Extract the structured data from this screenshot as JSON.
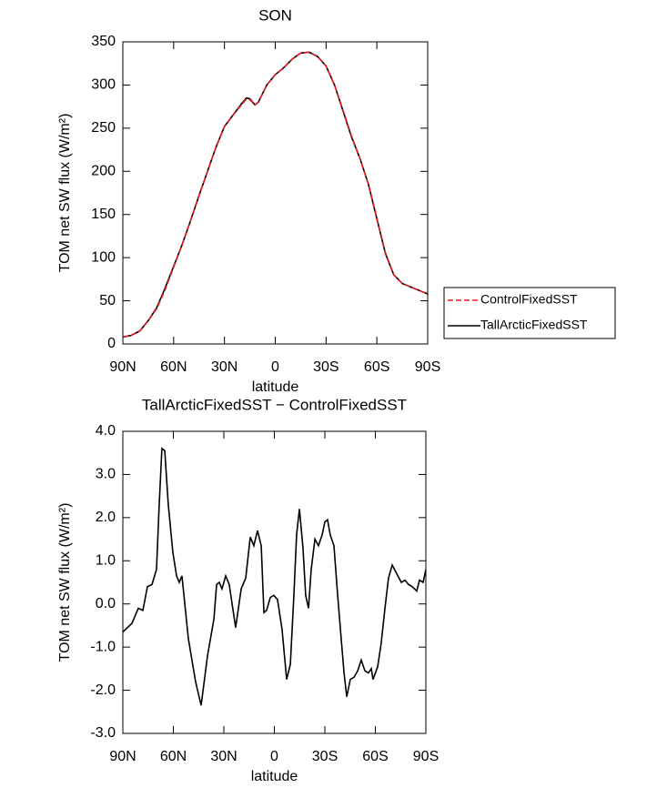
{
  "chart_data": [
    {
      "type": "line",
      "title": "SON",
      "x_label": "latitude",
      "y_label": "TOM net SW flux (W/m²)",
      "x": [
        90,
        85,
        80,
        75,
        70,
        65,
        60,
        55,
        50,
        45,
        40,
        35,
        30,
        25,
        20,
        17,
        15,
        12,
        10,
        5,
        0,
        -5,
        -10,
        -15,
        -20,
        -25,
        -30,
        -35,
        -40,
        -45,
        -50,
        -55,
        -60,
        -65,
        -70,
        -75,
        -80,
        -85,
        -90
      ],
      "series": [
        {
          "name": "ControlFixedSST",
          "color": "#e8191f",
          "line_style": "dashed",
          "values": [
            8,
            10,
            15,
            27,
            41,
            63,
            89,
            115,
            143,
            172,
            200,
            228,
            252,
            265,
            277,
            284,
            283,
            277,
            280,
            300,
            312,
            320,
            330,
            337,
            338,
            333,
            322,
            300,
            271,
            241,
            215,
            185,
            146,
            106,
            80,
            70,
            66,
            62,
            58
          ]
        },
        {
          "name": "TallArcticFixedSST",
          "color": "#000000",
          "line_style": "solid",
          "values": [
            8,
            10,
            15,
            27,
            42,
            65,
            90,
            115,
            143,
            172,
            200,
            228,
            252,
            265,
            278,
            285,
            284,
            277,
            280,
            300,
            312,
            320,
            330,
            337,
            338,
            333,
            322,
            300,
            270,
            240,
            215,
            185,
            145,
            105,
            80,
            70,
            66,
            62,
            58
          ]
        }
      ],
      "xlim": [
        90,
        -90
      ],
      "xticks": [
        {
          "value": 90,
          "label": "90N"
        },
        {
          "value": 60,
          "label": "60N"
        },
        {
          "value": 30,
          "label": "30N"
        },
        0,
        {
          "value": -30,
          "label": "30S"
        },
        {
          "value": -60,
          "label": "60S"
        },
        {
          "value": -90,
          "label": "90S"
        }
      ],
      "ylim": [
        0,
        350
      ],
      "yticks": [
        0,
        50,
        100,
        150,
        200,
        250,
        300,
        350
      ],
      "legend": "right"
    },
    {
      "type": "line",
      "title": "TallArcticFixedSST − ControlFixedSST",
      "x_label": "latitude",
      "y_label": "TOM net SW flux (W/m²)",
      "x": [
        90,
        84.6,
        80.8,
        78.1,
        75.4,
        72.7,
        70.0,
        68.4,
        66.8,
        65.1,
        63.0,
        60.3,
        58.1,
        56.5,
        54.9,
        51.1,
        46.8,
        43.5,
        39.7,
        35.9,
        34.3,
        32.7,
        31.1,
        28.9,
        26.8,
        23.0,
        19.7,
        17.0,
        14.3,
        12.2,
        10.0,
        7.8,
        6.2,
        4.6,
        2.4,
        0.3,
        -1.9,
        -4.6,
        -7.3,
        -9.5,
        -11.6,
        -13.2,
        -14.9,
        -17.0,
        -18.6,
        -20.3,
        -21.9,
        -24.1,
        -26.2,
        -28.4,
        -30.0,
        -31.6,
        -33.2,
        -35.4,
        -37.6,
        -39.7,
        -41.4,
        -43.0,
        -45.1,
        -47.3,
        -49.5,
        -51.6,
        -53.8,
        -55.9,
        -57.6,
        -58.6,
        -61.4,
        -63.5,
        -65.7,
        -67.8,
        -70.0,
        -72.7,
        -75.4,
        -77.6,
        -79.7,
        -81.9,
        -84.6,
        -86.2,
        -88.4,
        -90
      ],
      "series": [
        {
          "name": "TallArcticFixedSST − ControlFixedSST",
          "color": "#000000",
          "line_style": "solid",
          "values": [
            -0.65,
            -0.45,
            -0.1,
            -0.15,
            0.4,
            0.45,
            0.8,
            2.3,
            3.6,
            3.55,
            2.3,
            1.2,
            0.65,
            0.5,
            0.65,
            -0.8,
            -1.8,
            -2.35,
            -1.2,
            -0.35,
            0.45,
            0.5,
            0.35,
            0.65,
            0.45,
            -0.55,
            0.35,
            0.6,
            1.55,
            1.35,
            1.7,
            1.35,
            -0.2,
            -0.15,
            0.15,
            0.2,
            0.1,
            -0.6,
            -1.75,
            -1.4,
            0.2,
            1.6,
            2.2,
            1.3,
            0.2,
            -0.1,
            0.8,
            1.5,
            1.35,
            1.6,
            1.9,
            1.95,
            1.6,
            1.35,
            0.2,
            -0.8,
            -1.6,
            -2.15,
            -1.75,
            -1.7,
            -1.55,
            -1.3,
            -1.55,
            -1.6,
            -1.5,
            -1.75,
            -1.45,
            -0.9,
            -0.1,
            0.6,
            0.9,
            0.7,
            0.5,
            0.55,
            0.45,
            0.4,
            0.3,
            0.55,
            0.5,
            0.8
          ]
        }
      ],
      "xlim": [
        90,
        -90
      ],
      "xticks": [
        {
          "value": 90,
          "label": "90N"
        },
        {
          "value": 60,
          "label": "60N"
        },
        {
          "value": 30,
          "label": "30N"
        },
        0,
        {
          "value": -30,
          "label": "30S"
        },
        {
          "value": -60,
          "label": "60S"
        },
        {
          "value": -90,
          "label": "90S"
        }
      ],
      "ylim": [
        -3,
        4
      ],
      "yticks": [
        {
          "value": -3,
          "label": "-3.0"
        },
        {
          "value": -2,
          "label": "-2.0"
        },
        {
          "value": -1,
          "label": "-1.0"
        },
        {
          "value": 0,
          "label": "0.0"
        },
        {
          "value": 1,
          "label": "1.0"
        },
        {
          "value": 2,
          "label": "2.0"
        },
        {
          "value": 3,
          "label": "3.0"
        },
        {
          "value": 4,
          "label": "4.0"
        }
      ]
    }
  ]
}
